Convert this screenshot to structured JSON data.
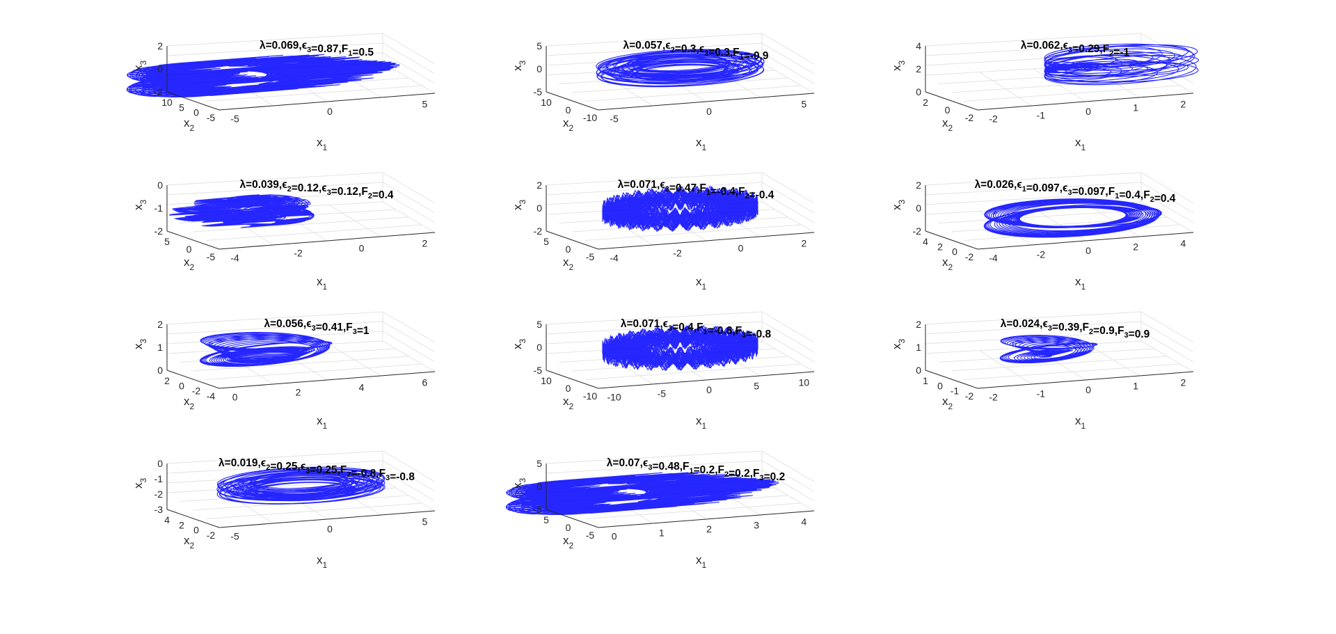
{
  "chart_data": [
    {
      "type": "line",
      "projection": "3d",
      "title": "λ=0.069,ϵ3=0.87,F1=0.5",
      "x1_ticks": [
        "-5",
        "0",
        "5"
      ],
      "x2_ticks": [
        "10",
        "5",
        "0",
        "-5"
      ],
      "x3_ticks": [
        "2",
        "0",
        "-2"
      ],
      "x1_lim": [
        -7,
        6
      ],
      "x2_lim": [
        -8,
        11
      ],
      "x3_lim": [
        -2,
        2.5
      ]
    },
    {
      "type": "line",
      "projection": "3d",
      "title": "λ=0.057,ϵ2=0.3,ϵ3=0.3,F1=-0.9",
      "x1_ticks": [
        "-5",
        "0",
        "5"
      ],
      "x2_ticks": [
        "10",
        "0",
        "-10"
      ],
      "x3_ticks": [
        "5",
        "0",
        "-5"
      ],
      "x1_lim": [
        -7,
        6
      ],
      "x2_lim": [
        -12,
        11
      ],
      "x3_lim": [
        -5,
        5
      ]
    },
    {
      "type": "line",
      "projection": "3d",
      "title": "λ=0.062,ϵ3=0.29,F2=-1",
      "x1_ticks": [
        "-2",
        "-1",
        "0",
        "1",
        "2"
      ],
      "x2_ticks": [
        "2",
        "0",
        "-2"
      ],
      "x3_ticks": [
        "4",
        "2",
        "0"
      ],
      "x1_lim": [
        -2.2,
        2.2
      ],
      "x2_lim": [
        -3,
        2.5
      ],
      "x3_lim": [
        -0.5,
        4
      ]
    },
    {
      "type": "line",
      "projection": "3d",
      "title": "λ=0.039,ϵ2=0.12,ϵ3=0.12,F2=0.4",
      "x1_ticks": [
        "-4",
        "-2",
        "0",
        "2"
      ],
      "x2_ticks": [
        "5",
        "0",
        "-5"
      ],
      "x3_ticks": [
        "0",
        "-1",
        "-2"
      ],
      "x1_lim": [
        -4.2,
        2.5
      ],
      "x2_lim": [
        -6,
        6
      ],
      "x3_lim": [
        -3,
        0.3
      ]
    },
    {
      "type": "line",
      "projection": "3d",
      "title": "λ=0.071,ϵ3=0.47,F1=-0.4,F2=-0.4",
      "x1_ticks": [
        "-4",
        "-2",
        "0",
        "2"
      ],
      "x2_ticks": [
        "5",
        "0",
        "-5"
      ],
      "x3_ticks": [
        "2",
        "0",
        "-2"
      ],
      "x1_lim": [
        -4.5,
        2.5
      ],
      "x2_lim": [
        -6,
        6
      ],
      "x3_lim": [
        -3,
        2.5
      ]
    },
    {
      "type": "line",
      "projection": "3d",
      "title": "λ=0.026,ϵ1=0.097,ϵ3=0.097,F1=0.4,F2=0.4",
      "x1_ticks": [
        "-4",
        "-2",
        "0",
        "2",
        "4"
      ],
      "x2_ticks": [
        "4",
        "2",
        "0",
        "-2"
      ],
      "x3_ticks": [
        "2",
        "0",
        "-2"
      ],
      "x1_lim": [
        -4.5,
        4.5
      ],
      "x2_lim": [
        -3,
        4.5
      ],
      "x3_lim": [
        -2,
        2
      ]
    },
    {
      "type": "line",
      "projection": "3d",
      "title": "λ=0.056,ϵ3=0.41,F3=1",
      "x1_ticks": [
        "0",
        "2",
        "4",
        "6"
      ],
      "x2_ticks": [
        "2",
        "0",
        "-2",
        "-4"
      ],
      "x3_ticks": [
        "2",
        "1",
        "0"
      ],
      "x1_lim": [
        -1.5,
        7
      ],
      "x2_lim": [
        -4.5,
        2.5
      ],
      "x3_lim": [
        -0.5,
        2.5
      ]
    },
    {
      "type": "line",
      "projection": "3d",
      "title": "λ=0.071,ϵ3=0.4,F1=-0.8,F3=-0.8",
      "x1_ticks": [
        "-10",
        "-5",
        "0",
        "5",
        "10"
      ],
      "x2_ticks": [
        "10",
        "0",
        "-10"
      ],
      "x3_ticks": [
        "5",
        "0",
        "-5"
      ],
      "x1_lim": [
        -11,
        11
      ],
      "x2_lim": [
        -12,
        11
      ],
      "x3_lim": [
        -5,
        5
      ]
    },
    {
      "type": "line",
      "projection": "3d",
      "title": "λ=0.024,ϵ3=0.39,F2=0.9,F3=0.9",
      "x1_ticks": [
        "-2",
        "-1",
        "0",
        "1",
        "2"
      ],
      "x2_ticks": [
        "1",
        "0",
        "-1",
        "-2"
      ],
      "x3_ticks": [
        "2",
        "1",
        "0"
      ],
      "x1_lim": [
        -2.5,
        2.5
      ],
      "x2_lim": [
        -2.2,
        1.2
      ],
      "x3_lim": [
        0,
        2.7
      ]
    },
    {
      "type": "line",
      "projection": "3d",
      "title": "λ=0.019,ϵ2=0.25,ϵ3=0.25,F2=-0.8,F3=-0.8",
      "x1_ticks": [
        "-5",
        "0",
        "5"
      ],
      "x2_ticks": [
        "4",
        "2",
        "0",
        "-2"
      ],
      "x3_ticks": [
        "0",
        "-1",
        "-2",
        "-3"
      ],
      "x1_lim": [
        -6,
        6
      ],
      "x2_lim": [
        -3,
        4.5
      ],
      "x3_lim": [
        -3,
        1
      ]
    },
    {
      "type": "line",
      "projection": "3d",
      "title": "λ=0.07,ϵ3=0.48,F1=0.2,F2=0.2,F3=0.2",
      "x1_ticks": [
        "0",
        "1",
        "2",
        "3",
        "4"
      ],
      "x2_ticks": [
        "5",
        "0",
        "-5"
      ],
      "x3_ticks": [
        "5",
        "0",
        "-5"
      ],
      "x1_lim": [
        -1,
        4.2
      ],
      "x2_lim": [
        -7,
        6
      ],
      "x3_lim": [
        -5,
        6
      ]
    }
  ],
  "axis_labels": {
    "x1": "x",
    "x1_sub": "1",
    "x2": "x",
    "x2_sub": "2",
    "x3": "x",
    "x3_sub": "3"
  },
  "colors": {
    "trajectory": "#0000ff",
    "axis": "#262626",
    "grid": "#e3e3e3"
  }
}
